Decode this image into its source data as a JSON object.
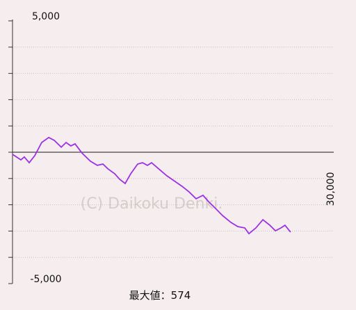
{
  "chart_data": {
    "type": "line",
    "watermark": "(C) Daikoku Denki.",
    "annotation": "最大値：574",
    "x": [
      0,
      780,
      1100,
      1560,
      2080,
      2730,
      3380,
      3900,
      4550,
      5000,
      5450,
      5840,
      6490,
      7270,
      7920,
      8440,
      8900,
      9550,
      10000,
      10520,
      11040,
      11690,
      12140,
      12600,
      12990,
      13640,
      14420,
      15060,
      15840,
      16490,
      17140,
      17790,
      18310,
      18960,
      19610,
      20390,
      21040,
      21690,
      22080,
      22730,
      23380,
      24030,
      24550,
      25070,
      25450,
      25970
    ],
    "series": [
      {
        "color": "#9b30e6",
        "values": [
          -80,
          -290,
          -180,
          -400,
          -130,
          370,
          560,
          450,
          190,
          370,
          240,
          320,
          -30,
          -340,
          -500,
          -450,
          -630,
          -820,
          -1030,
          -1190,
          -820,
          -450,
          -400,
          -500,
          -400,
          -630,
          -900,
          -1080,
          -1300,
          -1510,
          -1770,
          -1640,
          -1880,
          -2140,
          -2410,
          -2670,
          -2830,
          -2880,
          -3100,
          -2880,
          -2570,
          -2780,
          -2990,
          -2880,
          -2780,
          -3040
        ]
      }
    ],
    "xlim": [
      0,
      30000
    ],
    "xticks": [
      {
        "value": 30000,
        "label": "30,000"
      }
    ],
    "ylim": [
      -5000,
      5000
    ],
    "yticks": [
      {
        "value": 5000,
        "label": "5,000"
      },
      {
        "value": -5000,
        "label": "-5,000"
      }
    ],
    "minor_yticks": [
      -4000,
      -3000,
      -2000,
      -1000,
      0,
      1000,
      2000,
      3000,
      4000
    ],
    "grid": true
  }
}
